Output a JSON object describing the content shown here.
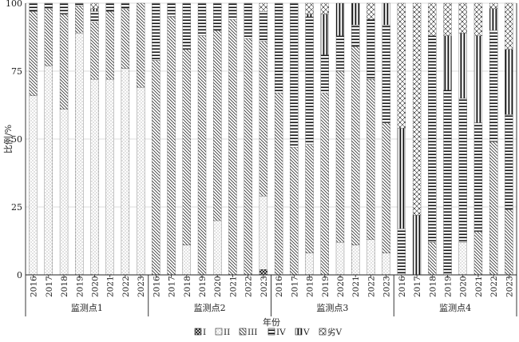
{
  "chart_data": {
    "type": "bar",
    "stacked": true,
    "percent": true,
    "ylabel": "比例/%",
    "xlabel": "年份",
    "ylim": [
      0,
      100
    ],
    "yticks": [
      "0",
      "25",
      "50",
      "75",
      "100"
    ],
    "grid": "horizontal",
    "legend_position": "bottom",
    "years": [
      "2016",
      "2017",
      "2018",
      "2019",
      "2020",
      "2021",
      "2022",
      "2023"
    ],
    "legend": [
      "I",
      "II",
      "III",
      "IV",
      "V",
      "劣V"
    ],
    "groups": [
      {
        "name": "监测点1",
        "bars": [
          [
            0,
            66,
            31,
            3,
            0,
            0
          ],
          [
            0,
            77,
            21,
            2,
            0,
            0
          ],
          [
            0,
            61,
            35,
            4,
            0,
            0
          ],
          [
            0,
            89,
            10,
            1,
            0,
            0
          ],
          [
            0,
            72,
            21,
            4,
            1,
            2
          ],
          [
            0,
            72,
            25,
            3,
            0,
            0
          ],
          [
            0,
            76,
            22,
            2,
            0,
            0
          ],
          [
            0,
            69,
            31,
            0,
            0,
            0
          ]
        ]
      },
      {
        "name": "监测点2",
        "bars": [
          [
            0,
            0,
            79,
            21,
            0,
            0
          ],
          [
            0,
            0,
            95,
            5,
            0,
            0
          ],
          [
            0,
            11,
            72,
            17,
            0,
            0
          ],
          [
            0,
            0,
            88,
            12,
            0,
            0
          ],
          [
            0,
            20,
            70,
            10,
            0,
            0
          ],
          [
            0,
            0,
            94,
            6,
            0,
            0
          ],
          [
            0,
            0,
            87,
            13,
            0,
            0
          ],
          [
            2,
            27,
            57,
            11,
            0,
            3
          ]
        ]
      },
      {
        "name": "监测点3",
        "bars": [
          [
            0,
            0,
            67,
            33,
            0,
            0
          ],
          [
            0,
            0,
            47,
            53,
            0,
            0
          ],
          [
            0,
            8,
            40,
            47,
            1,
            4
          ],
          [
            0,
            0,
            67,
            14,
            15,
            4
          ],
          [
            0,
            12,
            63,
            13,
            12,
            0
          ],
          [
            0,
            11,
            73,
            8,
            8,
            0
          ],
          [
            0,
            13,
            59,
            22,
            0,
            6
          ],
          [
            0,
            8,
            48,
            36,
            8,
            0
          ]
        ]
      },
      {
        "name": "监测点4",
        "bars": [
          [
            0,
            0,
            0,
            17,
            37,
            46
          ],
          [
            0,
            0,
            0,
            0,
            22,
            78
          ],
          [
            0,
            0,
            12,
            76,
            0,
            12
          ],
          [
            0,
            0,
            0,
            68,
            20,
            12
          ],
          [
            0,
            12,
            0,
            53,
            24,
            11
          ],
          [
            0,
            0,
            16,
            40,
            32,
            12
          ],
          [
            0,
            0,
            49,
            41,
            8,
            2
          ],
          [
            0,
            0,
            24,
            35,
            24,
            17
          ]
        ]
      }
    ]
  }
}
